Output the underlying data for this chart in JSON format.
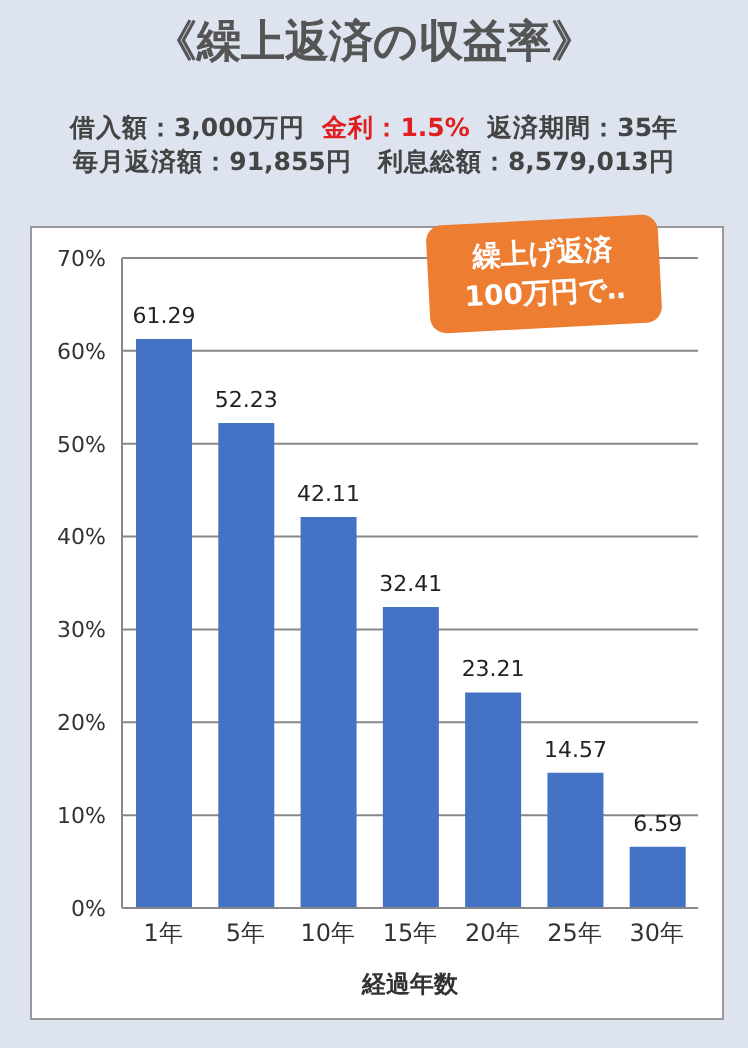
{
  "chart_data": {
    "type": "bar",
    "title": "《繰上返済の収益率》",
    "annotations": [
      "借入額：3,000万円",
      "金利：1.5%",
      "返済期間：35年",
      "毎月返済額：91,855円",
      "利息総額：8,579,013円",
      "繰上げ返済\n100万円で‥"
    ],
    "categories": [
      "1年",
      "5年",
      "10年",
      "15年",
      "20年",
      "25年",
      "30年"
    ],
    "values": [
      61.29,
      52.23,
      42.11,
      32.41,
      23.21,
      14.57,
      6.59
    ],
    "color": "#4472c4",
    "xlabel": "経過年数",
    "ylim": [
      0,
      70
    ],
    "yticks": [
      {
        "value": 0,
        "label": "0%"
      },
      {
        "value": 10,
        "label": "10%"
      },
      {
        "value": 20,
        "label": "20%"
      },
      {
        "value": 30,
        "label": "30%"
      },
      {
        "value": 40,
        "label": "40%"
      },
      {
        "value": 50,
        "label": "50%"
      },
      {
        "value": 60,
        "label": "60%"
      },
      {
        "value": 70,
        "label": "70%"
      }
    ],
    "grid": "y",
    "data_labels": true,
    "legend": false
  }
}
